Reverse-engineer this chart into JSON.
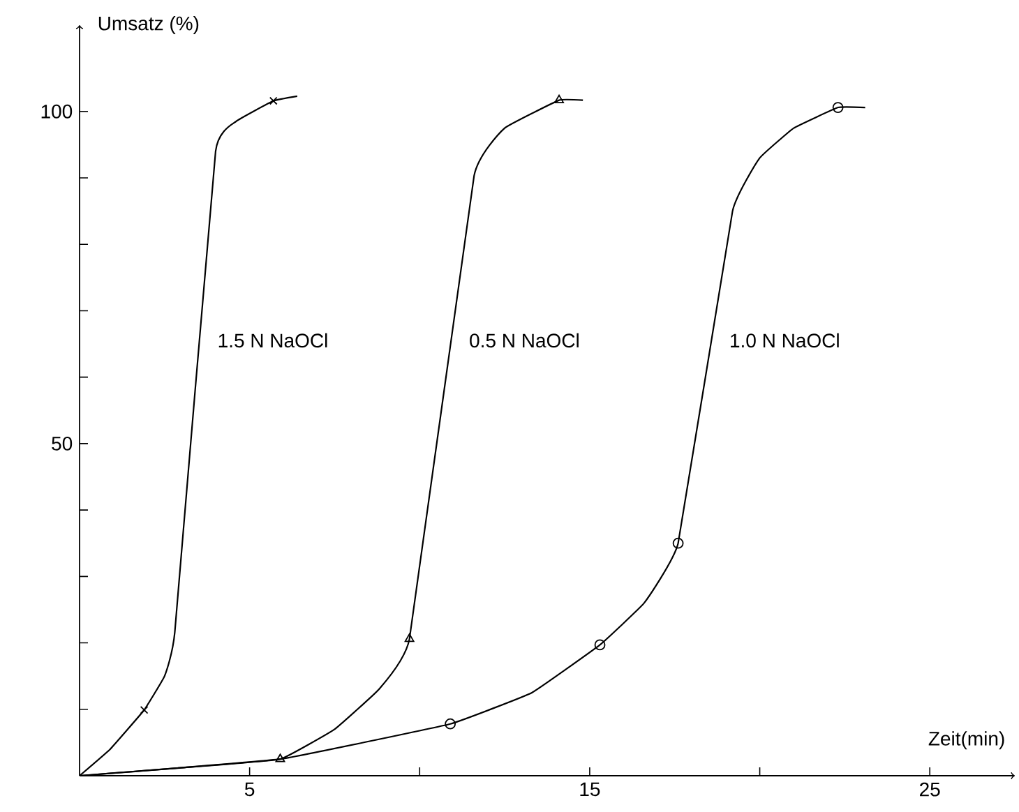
{
  "chart_data": {
    "type": "line",
    "xlabel": "Zeit(min)",
    "ylabel": "Umsatz (%)",
    "xlim": [
      0,
      27.5
    ],
    "ylim": [
      0,
      113
    ],
    "xticks": [
      5,
      {
        "value": 10,
        "label": null
      },
      15,
      {
        "value": 20,
        "label": null
      },
      25
    ],
    "yticks": [
      {
        "value": 10,
        "label": null
      },
      {
        "value": 20,
        "label": null
      },
      {
        "value": 30,
        "label": null
      },
      {
        "value": 40,
        "label": null
      },
      50,
      {
        "value": 60,
        "label": null
      },
      {
        "value": 70,
        "label": null
      },
      {
        "value": 80,
        "label": null
      },
      {
        "value": 90,
        "label": null
      },
      100
    ],
    "grid": false,
    "line_style": "solid",
    "series": [
      {
        "name": "1.5 N NaOCl",
        "marker": "none",
        "color": "#000000",
        "x": [
          0,
          0.9,
          1.9,
          2.5,
          2.8,
          4.0,
          4.6,
          5.7,
          6.4
        ],
        "values": [
          0,
          4,
          9.9,
          15,
          21.6,
          94,
          98.5,
          101.6,
          102.3
        ]
      },
      {
        "name": "0.5 N NaOCl",
        "marker": "none",
        "color": "#000000",
        "x": [
          0,
          3,
          5.9,
          7.5,
          8.8,
          9.7,
          11.6,
          12.5,
          14.1,
          14.8
        ],
        "values": [
          0,
          1.2,
          2.5,
          7,
          13,
          20.6,
          90.3,
          97.5,
          101.7,
          101.7
        ]
      },
      {
        "name": "1.0 N NaOCl",
        "marker": "none",
        "color": "#000000",
        "x": [
          0,
          5.9,
          10.9,
          13.3,
          15.3,
          16.6,
          17.6,
          19.2,
          20.0,
          21.0,
          22.3,
          23.1
        ],
        "values": [
          0,
          2.5,
          7.8,
          12.5,
          19.7,
          26,
          35,
          85,
          93,
          97.5,
          100.6,
          100.6
        ]
      },
      {
        "type": "scatter",
        "marker": "cross",
        "color": "#000000",
        "x": [
          1.9,
          5.7
        ],
        "values": [
          9.9,
          101.6
        ]
      },
      {
        "type": "scatter",
        "marker": "triangle",
        "color": "#000000",
        "x": [
          5.9,
          9.7,
          14.1
        ],
        "values": [
          2.5,
          20.6,
          101.7
        ]
      },
      {
        "type": "scatter",
        "marker": "circle",
        "color": "#000000",
        "x": [
          10.9,
          15.3,
          17.6,
          22.3
        ],
        "values": [
          7.8,
          19.7,
          35,
          100.6
        ]
      }
    ]
  }
}
